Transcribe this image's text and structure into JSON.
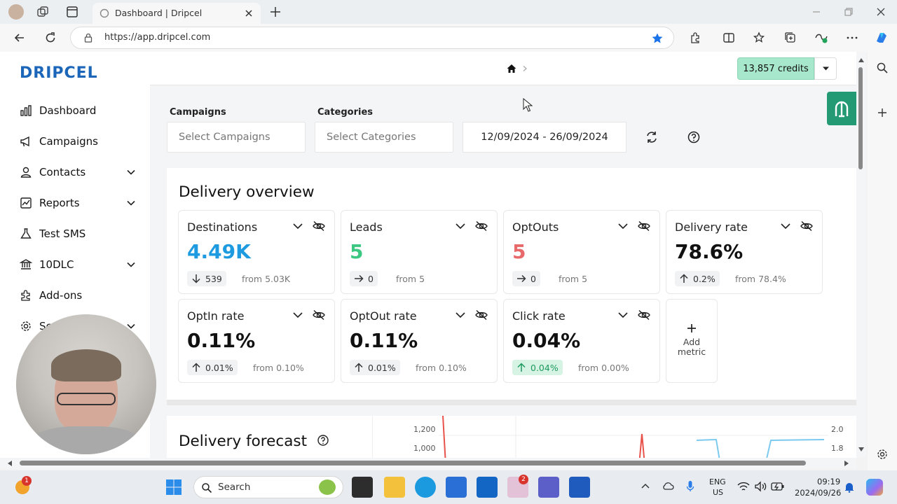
{
  "browser": {
    "tab_title": "Dashboard | Dripcel",
    "url": "https://app.dripcel.com"
  },
  "app": {
    "logo_text": "DRIPCEL",
    "credits": "13,857 credits"
  },
  "sidebar": {
    "items": [
      {
        "label": "Dashboard",
        "icon": "chart-icon",
        "expandable": false,
        "active": true
      },
      {
        "label": "Campaigns",
        "icon": "megaphone-icon",
        "expandable": false
      },
      {
        "label": "Contacts",
        "icon": "user-icon",
        "expandable": true
      },
      {
        "label": "Reports",
        "icon": "report-icon",
        "expandable": true
      },
      {
        "label": "Test SMS",
        "icon": "flask-icon",
        "expandable": false
      },
      {
        "label": "10DLC",
        "icon": "bank-icon",
        "expandable": true
      },
      {
        "label": "Add-ons",
        "icon": "puzzle-icon",
        "expandable": false
      },
      {
        "label": "Se",
        "icon": "gear-icon",
        "expandable": true
      }
    ]
  },
  "filters": {
    "campaigns_label": "Campaigns",
    "campaigns_placeholder": "Select Campaigns",
    "categories_label": "Categories",
    "categories_placeholder": "Select Categories",
    "date_range": "12/09/2024 - 26/09/2024"
  },
  "overview": {
    "title": "Delivery overview",
    "metrics": [
      {
        "title": "Destinations",
        "value": "4.49K",
        "value_color": "#1e9be0",
        "trend": "down",
        "change": "539",
        "from": "from 5.03K"
      },
      {
        "title": "Leads",
        "value": "5",
        "value_color": "#3cc782",
        "trend": "flat",
        "change": "0",
        "from": "from 5"
      },
      {
        "title": "OptOuts",
        "value": "5",
        "value_color": "#e8696a",
        "trend": "flat",
        "change": "0",
        "from": "from 5"
      },
      {
        "title": "Delivery rate",
        "value": "78.6%",
        "value_color": "#111111",
        "trend": "up",
        "change": "0.2%",
        "from": "from 78.4%"
      },
      {
        "title": "OptIn rate",
        "value": "0.11%",
        "value_color": "#111111",
        "trend": "up",
        "change": "0.01%",
        "from": "from 0.10%"
      },
      {
        "title": "OptOut rate",
        "value": "0.11%",
        "value_color": "#111111",
        "trend": "up",
        "change": "0.01%",
        "from": "from 0.10%"
      },
      {
        "title": "Click rate",
        "value": "0.04%",
        "value_color": "#111111",
        "trend": "up",
        "change": "0.04%",
        "from": "from 0.00%",
        "highlight": true
      }
    ],
    "add_metric": "Add\nmetric"
  },
  "forecast": {
    "title": "Delivery forecast",
    "left_ticks": [
      "1,200",
      "1,000"
    ],
    "right_ticks": [
      "2.0",
      "1.8"
    ]
  },
  "taskbar": {
    "search": "Search",
    "lang_1": "ENG",
    "lang_2": "US",
    "time": "09:19",
    "date": "2024/09/26"
  }
}
